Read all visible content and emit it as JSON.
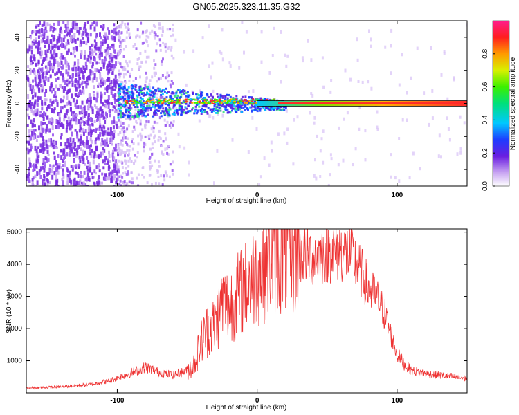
{
  "title": "GN05.2025.323.11.35.G32",
  "colors": {
    "accent": "#ee3333",
    "frame": "#000000",
    "low_scatter": "#7a2de0",
    "faint_scatter": "#c9a6f2",
    "band_line": "#000000"
  },
  "chart_data": [
    {
      "type": "heatmap",
      "name": "spectrogram",
      "xlabel": "Height of straight line (km)",
      "ylabel": "Frequency (Hz)",
      "xlim": [
        -165,
        150
      ],
      "ylim": [
        -50,
        50
      ],
      "xticks": [
        -100,
        0,
        100
      ],
      "xtick_labels": [
        "-100",
        "0",
        "100"
      ],
      "yticks": [
        -40,
        -20,
        0,
        20,
        40
      ],
      "ytick_labels": [
        "-40",
        "-20",
        "0",
        "20",
        "40"
      ],
      "colorbar": {
        "label": "Normalized spectral amplitude",
        "range": [
          0,
          1
        ],
        "ticks": [
          0.0,
          0.2,
          0.4,
          0.6,
          0.8
        ],
        "tick_labels": [
          "0.0",
          "0.2",
          "0.4",
          "0.6",
          "0.8"
        ]
      },
      "description_regions": {
        "dense_noise_x_range": [
          -165,
          -100
        ],
        "fading_noise_x_range": [
          -100,
          -80
        ],
        "signal_band_start_x": -100,
        "signal_band_center_hz": 0,
        "strong_tone_start_x": 15
      }
    },
    {
      "type": "line",
      "name": "snr",
      "xlabel": "Height of straight line (km)",
      "ylabel": "SNR (10 * v/v)",
      "xlim": [
        -165,
        150
      ],
      "ylim": [
        0,
        5100
      ],
      "xticks": [
        -100,
        0,
        100
      ],
      "xtick_labels": [
        "-100",
        "0",
        "100"
      ],
      "yticks": [
        1000,
        2000,
        3000,
        4000,
        5000
      ],
      "ytick_labels": [
        "1000",
        "2000",
        "3000",
        "4000",
        "5000"
      ],
      "series": [
        {
          "name": "SNR",
          "color": "#ee3333",
          "x": [
            -165,
            -140,
            -120,
            -105,
            -95,
            -85,
            -80,
            -70,
            -60,
            -50,
            -45,
            -40,
            -35,
            -30,
            -25,
            -20,
            -15,
            -10,
            -5,
            0,
            5,
            10,
            15,
            20,
            30,
            40,
            50,
            60,
            65,
            70,
            75,
            80,
            85,
            90,
            95,
            100,
            105,
            110,
            120,
            130,
            140,
            150
          ],
          "y": [
            150,
            190,
            260,
            380,
            550,
            700,
            800,
            650,
            550,
            700,
            900,
            1600,
            2000,
            2100,
            2800,
            2700,
            3000,
            3200,
            3500,
            3700,
            3900,
            4100,
            4300,
            4350,
            4300,
            4250,
            4350,
            4400,
            4350,
            4100,
            3700,
            3200,
            3000,
            2600,
            1900,
            1200,
            900,
            700,
            600,
            550,
            500,
            450
          ]
        }
      ]
    }
  ]
}
